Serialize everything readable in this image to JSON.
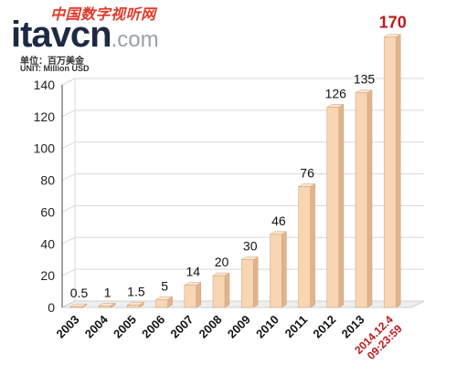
{
  "logo": {
    "cn_name": "中国数字视听网",
    "brand": "itavcn",
    "domain": ".com",
    "unit_cn": "单位：百万美金",
    "unit_en": "UNIT: Million USD"
  },
  "colors": {
    "bar_face": "#f8d6b3",
    "bar_side": "#e2b48c",
    "bar_top": "#fbe6cf",
    "last_label": "#c0171c",
    "grid": "#d8d8d8",
    "axis": "#444444"
  },
  "chart_data": {
    "type": "bar",
    "categories": [
      "2003",
      "2004",
      "2005",
      "2006",
      "2007",
      "2008",
      "2009",
      "2010",
      "2011",
      "2012",
      "2013",
      "2014.12.4\n09:23:59"
    ],
    "values": [
      0.5,
      1,
      1.5,
      5,
      14,
      20,
      30,
      46,
      76,
      126,
      135,
      170
    ],
    "data_labels": [
      "0.5",
      "1",
      "1.5",
      "5",
      "14",
      "20",
      "30",
      "46",
      "76",
      "126",
      "135",
      "170"
    ],
    "yticks": [
      0,
      20,
      40,
      60,
      80,
      100,
      120,
      140
    ],
    "ylim": [
      0,
      140
    ],
    "grid": true,
    "title": "",
    "xlabel": "",
    "ylabel": ""
  }
}
